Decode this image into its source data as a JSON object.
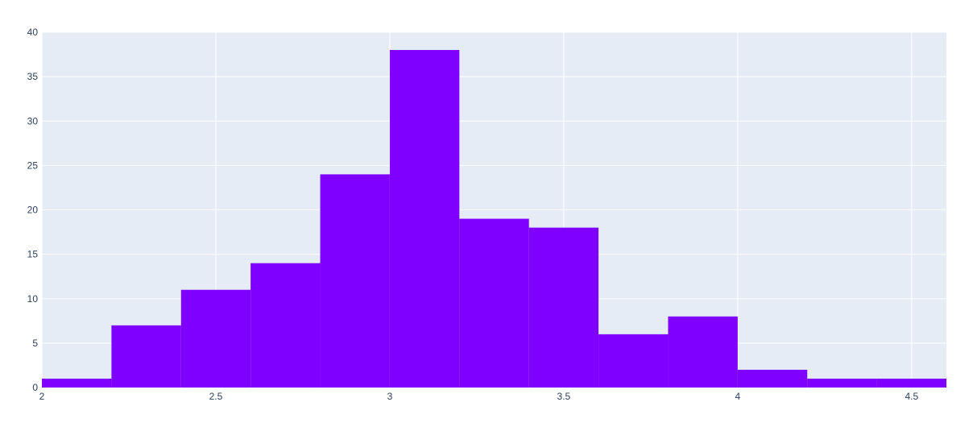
{
  "chart_data": {
    "type": "bar",
    "subtype": "histogram",
    "title": "",
    "xlabel": "",
    "ylabel": "",
    "bins": [
      {
        "start": 2.0,
        "end": 2.2,
        "count": 1
      },
      {
        "start": 2.2,
        "end": 2.4,
        "count": 7
      },
      {
        "start": 2.4,
        "end": 2.6,
        "count": 11
      },
      {
        "start": 2.6,
        "end": 2.8,
        "count": 14
      },
      {
        "start": 2.8,
        "end": 3.0,
        "count": 24
      },
      {
        "start": 3.0,
        "end": 3.2,
        "count": 38
      },
      {
        "start": 3.2,
        "end": 3.4,
        "count": 19
      },
      {
        "start": 3.4,
        "end": 3.6,
        "count": 18
      },
      {
        "start": 3.6,
        "end": 3.8,
        "count": 6
      },
      {
        "start": 3.8,
        "end": 4.0,
        "count": 8
      },
      {
        "start": 4.0,
        "end": 4.2,
        "count": 2
      },
      {
        "start": 4.2,
        "end": 4.4,
        "count": 1
      },
      {
        "start": 4.4,
        "end": 4.6,
        "count": 1
      }
    ],
    "xlim": [
      2,
      4.6
    ],
    "ylim": [
      0,
      40
    ],
    "x_ticks": [
      {
        "value": 2,
        "label": "2"
      },
      {
        "value": 2.5,
        "label": "2.5"
      },
      {
        "value": 3,
        "label": "3"
      },
      {
        "value": 3.5,
        "label": "3.5"
      },
      {
        "value": 4,
        "label": "4"
      },
      {
        "value": 4.5,
        "label": "4.5"
      }
    ],
    "y_ticks": [
      {
        "value": 0,
        "label": "0"
      },
      {
        "value": 5,
        "label": "5"
      },
      {
        "value": 10,
        "label": "10"
      },
      {
        "value": 15,
        "label": "15"
      },
      {
        "value": 20,
        "label": "20"
      },
      {
        "value": 25,
        "label": "25"
      },
      {
        "value": 30,
        "label": "30"
      },
      {
        "value": 35,
        "label": "35"
      },
      {
        "value": 40,
        "label": "40"
      }
    ],
    "grid": true,
    "colors": {
      "bar": "#7f00ff",
      "plot_background": "#e5ecf6",
      "grid": "#ffffff",
      "tick_text": "#2a3f5f"
    }
  }
}
